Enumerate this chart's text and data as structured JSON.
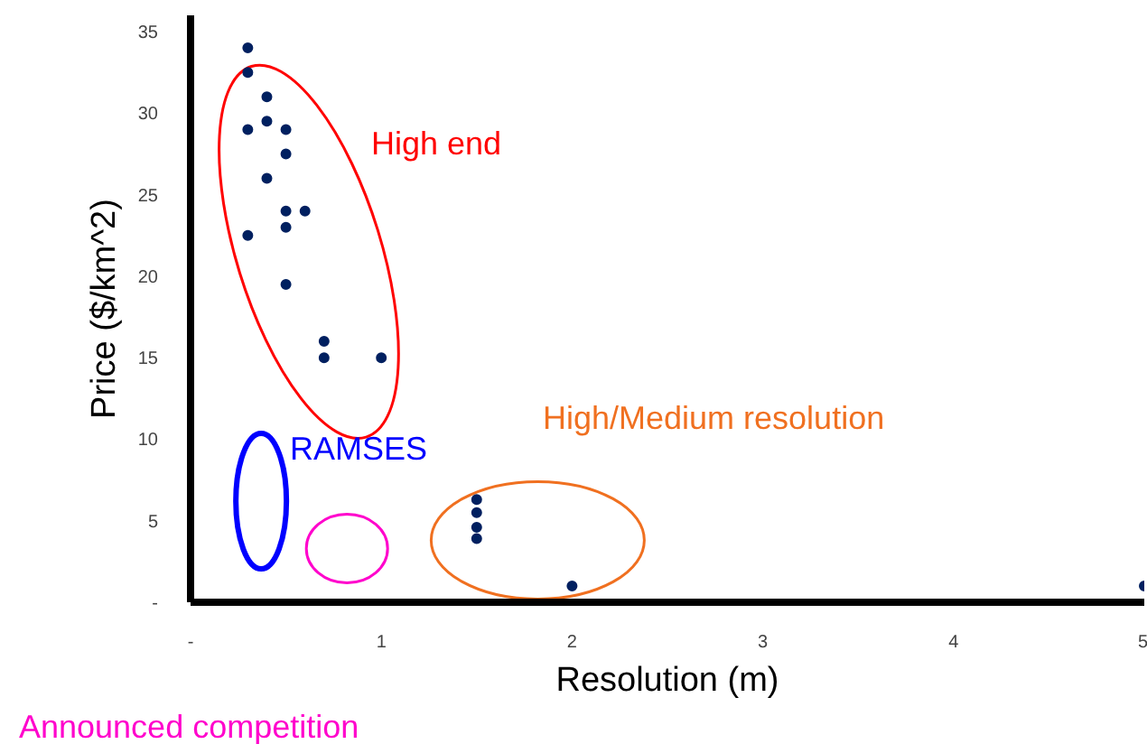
{
  "chart_data": {
    "type": "scatter",
    "xlabel": "Resolution (m)",
    "ylabel": "Price ($/km^2)",
    "xlim": [
      0,
      5
    ],
    "ylim": [
      0,
      36
    ],
    "xticks": [
      {
        "value": 0,
        "label": "-"
      },
      1,
      2,
      3,
      4,
      5
    ],
    "yticks": [
      {
        "value": 0,
        "label": "-"
      },
      5,
      10,
      15,
      20,
      25,
      30,
      35
    ],
    "grid": false,
    "marker": "circle",
    "series": [
      {
        "color": "#002060",
        "x": [
          0.3,
          0.3,
          0.4,
          0.3,
          0.4,
          0.5,
          0.5,
          0.4,
          0.5,
          0.6,
          0.5,
          0.3,
          0.5,
          0.7,
          0.7,
          1,
          1.5,
          1.5,
          1.5,
          1.5,
          2,
          5
        ],
        "values": [
          34,
          32.5,
          31,
          29,
          29.5,
          29,
          27.5,
          26,
          24,
          24,
          23,
          22.5,
          19.5,
          16,
          15,
          15,
          6.3,
          5.5,
          4.6,
          3.9,
          1,
          1
        ]
      }
    ],
    "annotations": [
      "High end",
      "RAMSES",
      "High/Medium resolution",
      "Announced competition"
    ]
  }
}
